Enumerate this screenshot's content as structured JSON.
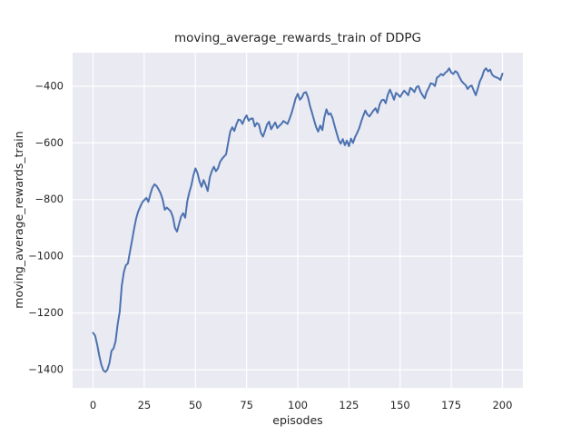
{
  "chart_data": {
    "type": "line",
    "title": "moving_average_rewards_train of DDPG",
    "xlabel": "episodes",
    "ylabel": "moving_average_rewards_train",
    "xlim": [
      -10,
      210
    ],
    "ylim": [
      -1464,
      -282
    ],
    "xticks": [
      0,
      25,
      50,
      75,
      100,
      125,
      150,
      175,
      200
    ],
    "yticks": [
      -1400,
      -1200,
      -1000,
      -800,
      -600,
      -400
    ],
    "xtick_labels": [
      "0",
      "25",
      "50",
      "75",
      "100",
      "125",
      "150",
      "175",
      "200"
    ],
    "ytick_labels": [
      "−1400",
      "−1200",
      "−1000",
      "−800",
      "−600",
      "−400"
    ],
    "grid": "on",
    "legend": "none",
    "colors": {
      "line": "#4c72b0",
      "plot_bg": "#eaeaf2",
      "grid": "#ffffff",
      "text": "#262626",
      "figure_bg": "#ffffff"
    },
    "series": [
      {
        "name": "moving_average_rewards_train",
        "points": [
          [
            0,
            -1270
          ],
          [
            1,
            -1280
          ],
          [
            2,
            -1312
          ],
          [
            3,
            -1350
          ],
          [
            4,
            -1382
          ],
          [
            5,
            -1402
          ],
          [
            6,
            -1408
          ],
          [
            7,
            -1400
          ],
          [
            8,
            -1376
          ],
          [
            9,
            -1334
          ],
          [
            10,
            -1325
          ],
          [
            11,
            -1300
          ],
          [
            12,
            -1240
          ],
          [
            13,
            -1195
          ],
          [
            14,
            -1105
          ],
          [
            15,
            -1056
          ],
          [
            16,
            -1032
          ],
          [
            17,
            -1025
          ],
          [
            18,
            -985
          ],
          [
            19,
            -945
          ],
          [
            20,
            -905
          ],
          [
            21,
            -868
          ],
          [
            22,
            -843
          ],
          [
            23,
            -826
          ],
          [
            24,
            -810
          ],
          [
            25,
            -802
          ],
          [
            26,
            -794
          ],
          [
            27,
            -808
          ],
          [
            28,
            -780
          ],
          [
            29,
            -758
          ],
          [
            30,
            -746
          ],
          [
            31,
            -752
          ],
          [
            32,
            -764
          ],
          [
            33,
            -778
          ],
          [
            34,
            -800
          ],
          [
            35,
            -836
          ],
          [
            36,
            -828
          ],
          [
            37,
            -835
          ],
          [
            38,
            -842
          ],
          [
            39,
            -862
          ],
          [
            40,
            -900
          ],
          [
            41,
            -913
          ],
          [
            42,
            -886
          ],
          [
            43,
            -860
          ],
          [
            44,
            -848
          ],
          [
            45,
            -864
          ],
          [
            46,
            -806
          ],
          [
            47,
            -775
          ],
          [
            48,
            -750
          ],
          [
            49,
            -715
          ],
          [
            50,
            -690
          ],
          [
            51,
            -706
          ],
          [
            52,
            -736
          ],
          [
            53,
            -755
          ],
          [
            54,
            -731
          ],
          [
            55,
            -748
          ],
          [
            56,
            -770
          ],
          [
            57,
            -722
          ],
          [
            58,
            -700
          ],
          [
            59,
            -684
          ],
          [
            60,
            -700
          ],
          [
            61,
            -690
          ],
          [
            62,
            -668
          ],
          [
            63,
            -656
          ],
          [
            64,
            -648
          ],
          [
            65,
            -640
          ],
          [
            66,
            -600
          ],
          [
            67,
            -560
          ],
          [
            68,
            -545
          ],
          [
            69,
            -558
          ],
          [
            70,
            -535
          ],
          [
            71,
            -518
          ],
          [
            72,
            -520
          ],
          [
            73,
            -533
          ],
          [
            74,
            -515
          ],
          [
            75,
            -503
          ],
          [
            76,
            -522
          ],
          [
            77,
            -515
          ],
          [
            78,
            -514
          ],
          [
            79,
            -542
          ],
          [
            80,
            -530
          ],
          [
            81,
            -535
          ],
          [
            82,
            -565
          ],
          [
            83,
            -578
          ],
          [
            84,
            -558
          ],
          [
            85,
            -535
          ],
          [
            86,
            -525
          ],
          [
            87,
            -552
          ],
          [
            88,
            -540
          ],
          [
            89,
            -528
          ],
          [
            90,
            -548
          ],
          [
            91,
            -540
          ],
          [
            92,
            -533
          ],
          [
            93,
            -523
          ],
          [
            94,
            -528
          ],
          [
            95,
            -533
          ],
          [
            96,
            -515
          ],
          [
            97,
            -495
          ],
          [
            98,
            -469
          ],
          [
            99,
            -443
          ],
          [
            100,
            -427
          ],
          [
            101,
            -448
          ],
          [
            102,
            -440
          ],
          [
            103,
            -424
          ],
          [
            104,
            -421
          ],
          [
            105,
            -440
          ],
          [
            106,
            -470
          ],
          [
            107,
            -495
          ],
          [
            108,
            -520
          ],
          [
            109,
            -545
          ],
          [
            110,
            -560
          ],
          [
            111,
            -539
          ],
          [
            112,
            -555
          ],
          [
            113,
            -510
          ],
          [
            114,
            -482
          ],
          [
            115,
            -500
          ],
          [
            116,
            -496
          ],
          [
            117,
            -512
          ],
          [
            118,
            -540
          ],
          [
            119,
            -565
          ],
          [
            120,
            -590
          ],
          [
            121,
            -603
          ],
          [
            122,
            -587
          ],
          [
            123,
            -608
          ],
          [
            124,
            -592
          ],
          [
            125,
            -612
          ],
          [
            126,
            -585
          ],
          [
            127,
            -600
          ],
          [
            128,
            -580
          ],
          [
            129,
            -565
          ],
          [
            130,
            -549
          ],
          [
            131,
            -525
          ],
          [
            132,
            -505
          ],
          [
            133,
            -486
          ],
          [
            134,
            -500
          ],
          [
            135,
            -507
          ],
          [
            136,
            -496
          ],
          [
            137,
            -486
          ],
          [
            138,
            -478
          ],
          [
            139,
            -494
          ],
          [
            140,
            -465
          ],
          [
            141,
            -450
          ],
          [
            142,
            -448
          ],
          [
            143,
            -460
          ],
          [
            144,
            -430
          ],
          [
            145,
            -412
          ],
          [
            146,
            -428
          ],
          [
            147,
            -448
          ],
          [
            148,
            -424
          ],
          [
            149,
            -430
          ],
          [
            150,
            -438
          ],
          [
            151,
            -426
          ],
          [
            152,
            -416
          ],
          [
            153,
            -424
          ],
          [
            154,
            -432
          ],
          [
            155,
            -406
          ],
          [
            156,
            -412
          ],
          [
            157,
            -421
          ],
          [
            158,
            -403
          ],
          [
            159,
            -400
          ],
          [
            160,
            -420
          ],
          [
            161,
            -432
          ],
          [
            162,
            -443
          ],
          [
            163,
            -420
          ],
          [
            164,
            -406
          ],
          [
            165,
            -390
          ],
          [
            166,
            -392
          ],
          [
            167,
            -400
          ],
          [
            168,
            -370
          ],
          [
            169,
            -365
          ],
          [
            170,
            -357
          ],
          [
            171,
            -362
          ],
          [
            172,
            -353
          ],
          [
            173,
            -348
          ],
          [
            174,
            -337
          ],
          [
            175,
            -352
          ],
          [
            176,
            -357
          ],
          [
            177,
            -347
          ],
          [
            178,
            -353
          ],
          [
            179,
            -368
          ],
          [
            180,
            -382
          ],
          [
            181,
            -390
          ],
          [
            182,
            -396
          ],
          [
            183,
            -410
          ],
          [
            184,
            -401
          ],
          [
            185,
            -398
          ],
          [
            186,
            -416
          ],
          [
            187,
            -432
          ],
          [
            188,
            -408
          ],
          [
            189,
            -382
          ],
          [
            190,
            -368
          ],
          [
            191,
            -345
          ],
          [
            192,
            -337
          ],
          [
            193,
            -348
          ],
          [
            194,
            -342
          ],
          [
            195,
            -360
          ],
          [
            196,
            -366
          ],
          [
            197,
            -369
          ],
          [
            198,
            -372
          ],
          [
            199,
            -378
          ],
          [
            200,
            -356
          ]
        ]
      }
    ]
  }
}
